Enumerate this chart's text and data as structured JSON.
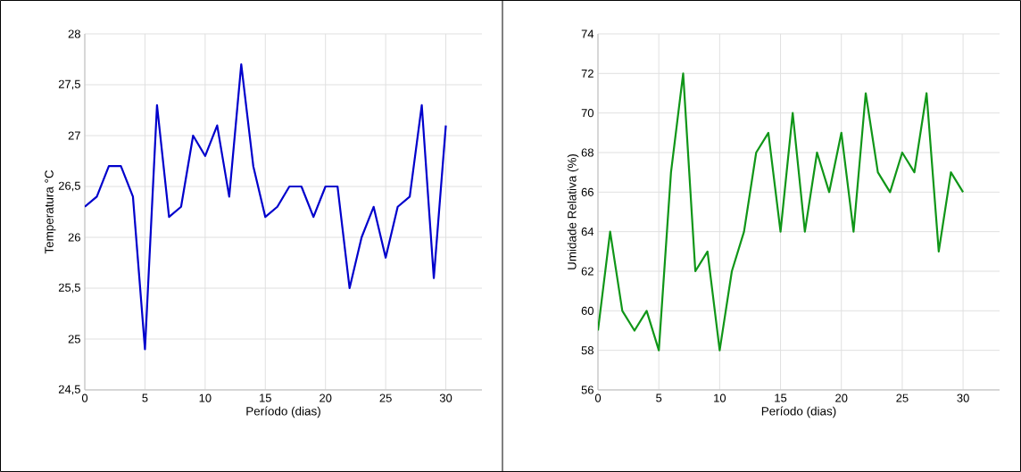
{
  "chart_data": [
    {
      "type": "line",
      "xlabel": "Período (dias)",
      "ylabel": "Temperatura °C",
      "grid": true,
      "x": [
        0,
        1,
        2,
        3,
        4,
        5,
        6,
        7,
        8,
        9,
        10,
        11,
        12,
        13,
        14,
        15,
        16,
        17,
        18,
        19,
        20,
        21,
        22,
        23,
        24,
        25,
        26,
        27,
        28,
        29,
        30
      ],
      "series": [
        {
          "color": "#0000cc",
          "values": [
            26.3,
            26.4,
            26.7,
            26.7,
            26.4,
            24.9,
            27.3,
            26.2,
            26.3,
            27.0,
            26.8,
            27.1,
            26.4,
            27.7,
            26.7,
            26.2,
            26.3,
            26.5,
            26.5,
            26.2,
            26.5,
            26.5,
            25.5,
            26.0,
            26.3,
            25.8,
            26.3,
            26.4,
            27.3,
            25.6,
            27.1
          ]
        }
      ],
      "xlim": [
        0,
        33
      ],
      "xticks": [
        0,
        5,
        10,
        15,
        20,
        25,
        30
      ],
      "ylim": [
        24.5,
        28
      ],
      "yticks": [
        {
          "value": 24.5,
          "label": "24,5"
        },
        25,
        {
          "value": 25.5,
          "label": "25,5"
        },
        26,
        {
          "value": 26.5,
          "label": "26,5"
        },
        27,
        {
          "value": 27.5,
          "label": "27,5"
        },
        28
      ]
    },
    {
      "type": "line",
      "xlabel": "Período (dias)",
      "ylabel": "Umidade Relativa  (%)",
      "grid": true,
      "x": [
        0,
        1,
        2,
        3,
        4,
        5,
        6,
        7,
        8,
        9,
        10,
        11,
        12,
        13,
        14,
        15,
        16,
        17,
        18,
        19,
        20,
        21,
        22,
        23,
        24,
        25,
        26,
        27,
        28,
        29,
        30
      ],
      "series": [
        {
          "color": "#109618",
          "values": [
            59,
            64,
            60,
            59,
            60,
            58,
            67,
            72,
            62,
            63,
            58,
            62,
            64,
            68,
            69,
            64,
            70,
            64,
            68,
            66,
            69,
            64,
            71,
            67,
            66,
            68,
            67,
            71,
            63,
            67,
            66
          ]
        }
      ],
      "xlim": [
        0,
        33
      ],
      "xticks": [
        0,
        5,
        10,
        15,
        20,
        25,
        30
      ],
      "ylim": [
        56,
        74
      ],
      "yticks": [
        56,
        58,
        60,
        62,
        64,
        66,
        68,
        70,
        72,
        74
      ]
    }
  ]
}
